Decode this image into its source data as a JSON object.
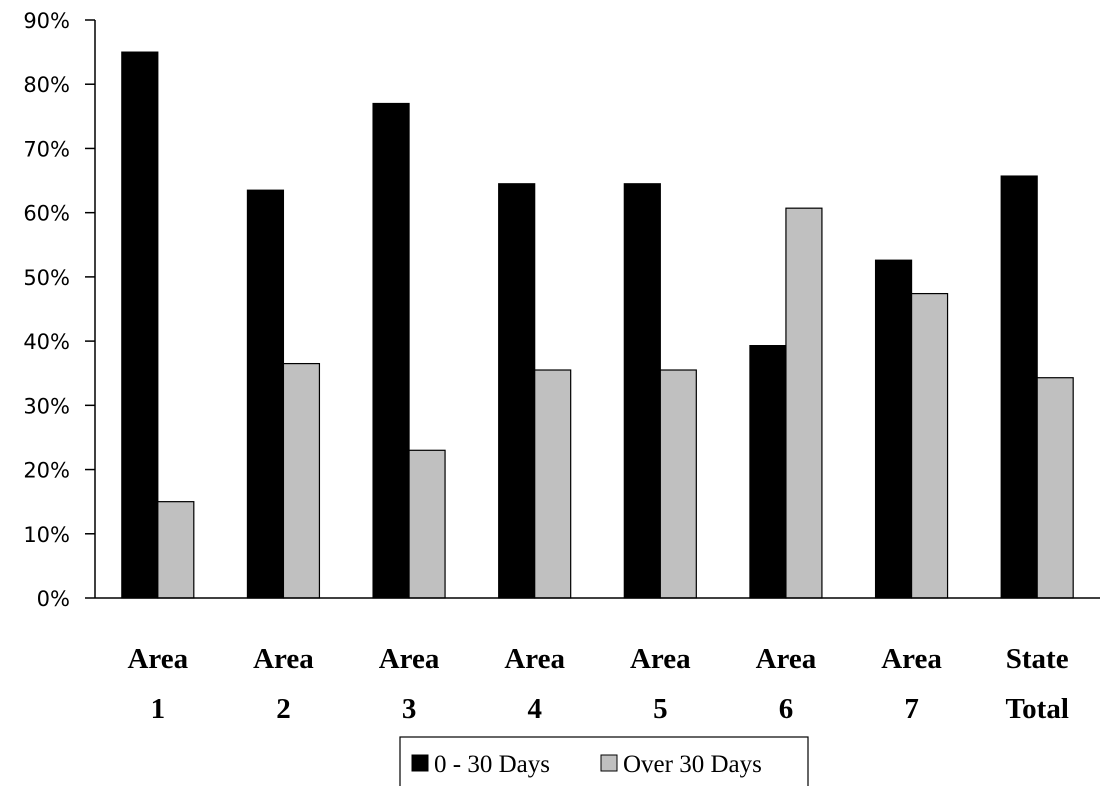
{
  "chart_data": {
    "type": "bar",
    "title": "",
    "xlabel": "",
    "ylabel": "",
    "categories": [
      [
        "Area",
        "1"
      ],
      [
        "Area",
        "2"
      ],
      [
        "Area",
        "3"
      ],
      [
        "Area",
        "4"
      ],
      [
        "Area",
        "5"
      ],
      [
        "Area",
        "6"
      ],
      [
        "Area",
        "7"
      ],
      [
        "State",
        "Total"
      ]
    ],
    "series": [
      {
        "name": "0 - 30 Days",
        "color": "#000000",
        "values": [
          85,
          63.5,
          77,
          64.5,
          64.5,
          39.3,
          52.6,
          65.7
        ]
      },
      {
        "name": "Over 30 Days",
        "color": "#c0c0c0",
        "values": [
          15,
          36.5,
          23,
          35.5,
          35.5,
          60.7,
          47.4,
          34.3
        ]
      }
    ],
    "ylim": [
      0,
      90
    ],
    "yticks": [
      "0%",
      "10%",
      "20%",
      "30%",
      "40%",
      "50%",
      "60%",
      "70%",
      "80%",
      "90%"
    ],
    "grid": false,
    "legend_position": "bottom-center"
  }
}
